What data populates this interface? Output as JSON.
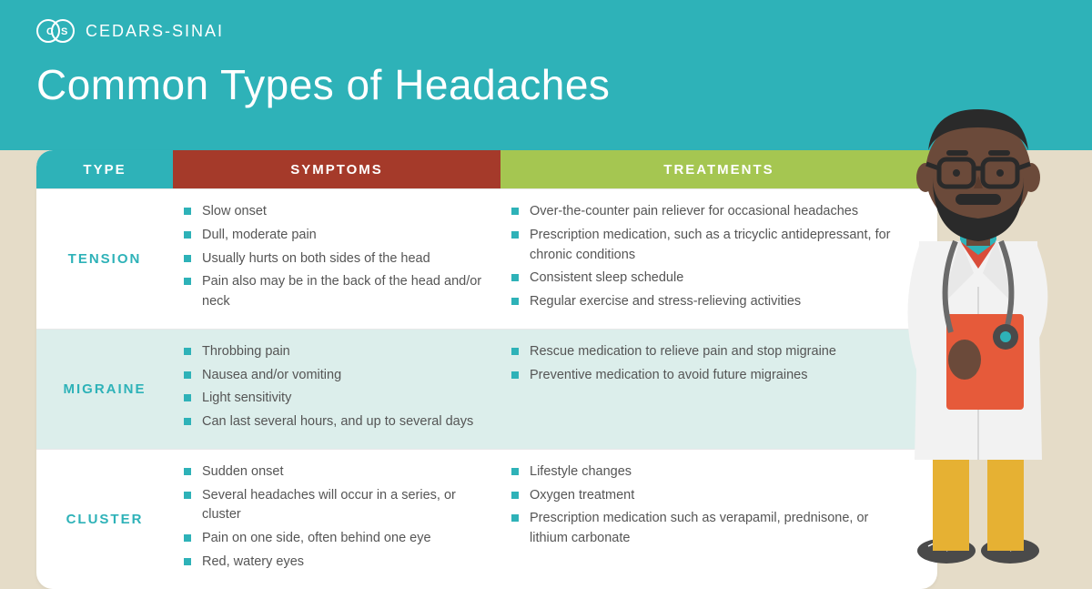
{
  "brand": "CEDARS-SINAI",
  "title": "Common Types of Headaches",
  "colors": {
    "header_bg": "#2eb2b8",
    "body_bg": "#e5dcc8",
    "type_header_bg": "#2eb2b8",
    "symptoms_header_bg": "#a53a2a",
    "treatments_header_bg": "#a5c651",
    "alt_row_bg": "#dceeeb",
    "bullet_color": "#2eb2b8",
    "type_text_color": "#2eb2b8",
    "body_text_color": "#555555",
    "white": "#ffffff"
  },
  "table": {
    "headers": {
      "type": "TYPE",
      "symptoms": "SYMPTOMS",
      "treatments": "TREATMENTS"
    },
    "rows": [
      {
        "type": "TENSION",
        "symptoms": [
          "Slow onset",
          "Dull, moderate pain",
          "Usually hurts on both sides of the head",
          "Pain also may be in the back of the head and/or neck"
        ],
        "treatments": [
          "Over-the-counter pain reliever for occasional headaches",
          "Prescription medication, such as a tricyclic antidepressant, for chronic conditions",
          "Consistent sleep schedule",
          "Regular exercise and stress-relieving activities"
        ]
      },
      {
        "type": "MIGRAINE",
        "symptoms": [
          "Throbbing pain",
          "Nausea and/or vomiting",
          "Light sensitivity",
          "Can last several hours, and up to several days"
        ],
        "treatments": [
          "Rescue medication to relieve pain and stop migraine",
          "Preventive medication to avoid future migraines"
        ]
      },
      {
        "type": "CLUSTER",
        "symptoms": [
          "Sudden onset",
          "Several headaches will occur in a series, or cluster",
          "Pain on one side, often behind one eye",
          "Red, watery eyes"
        ],
        "treatments": [
          "Lifestyle changes",
          "Oxygen treatment",
          "Prescription medication such as verapamil, prednisone, or lithium carbonate"
        ]
      }
    ]
  },
  "doctor_illustration": {
    "skin": "#6b4a3a",
    "beard": "#2a2a2a",
    "hair": "#2a2a2a",
    "glasses": "#2a2a2a",
    "coat": "#f2f2f2",
    "shirt": "#d94d3a",
    "collar": "#2eb2b8",
    "clipboard": "#e65a3a",
    "pants": "#e6b133",
    "shoes": "#4a4a4a",
    "stethoscope": "#6a6a6a"
  }
}
